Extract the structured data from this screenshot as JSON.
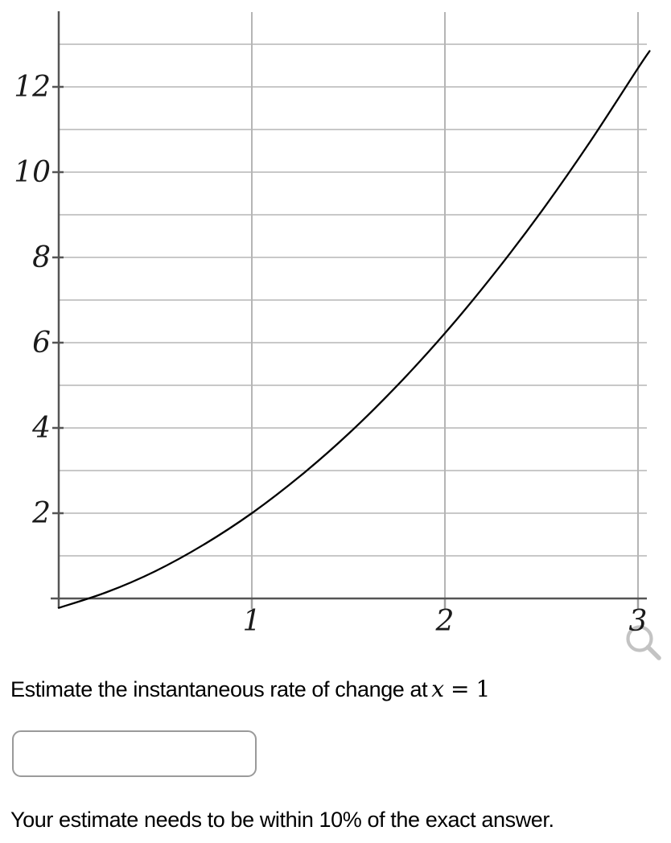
{
  "question": {
    "prefix": "Estimate the instantaneous rate of change at",
    "math": {
      "variable": "x",
      "relation": "=",
      "value": "1"
    }
  },
  "answer_input": {
    "value": "",
    "placeholder": ""
  },
  "note": "Your estimate needs to be within 10% of the exact answer.",
  "icons": {
    "zoom": "magnifier-icon"
  },
  "colors": {
    "axis": "#555555",
    "gridline": "#b5b5b5",
    "tick_below_axis": "#a0a0a0",
    "curve": "#000000",
    "label": "#1a1a1a",
    "zoom_icon": "#c3c3c3",
    "input_border": "#9a9a9a"
  },
  "chart_data": {
    "type": "line",
    "title": "",
    "xlabel": "",
    "ylabel": "",
    "xlim": [
      0,
      3.1
    ],
    "ylim": [
      -0.5,
      13.8
    ],
    "grid": true,
    "legend": false,
    "x_tick_values": [
      1,
      2,
      3
    ],
    "x_tick_labels": [
      "1",
      "2",
      "3"
    ],
    "y_tick_values": [
      2,
      4,
      6,
      8,
      10,
      12
    ],
    "y_tick_labels": [
      "2",
      "4",
      "6",
      "8",
      "10",
      "12"
    ],
    "x_gridline_values": [
      1,
      2,
      3
    ],
    "y_gridline_values": [
      1,
      2,
      3,
      4,
      5,
      6,
      7,
      8,
      9,
      10,
      11,
      12,
      13
    ],
    "series": [
      {
        "name": "curve",
        "points": [
          [
            0,
            -0.22
          ],
          [
            0.25,
            0.15
          ],
          [
            0.5,
            0.64
          ],
          [
            0.75,
            1.26
          ],
          [
            1,
            2.0
          ],
          [
            1.25,
            2.87
          ],
          [
            1.5,
            3.86
          ],
          [
            1.75,
            4.98
          ],
          [
            2,
            6.22
          ],
          [
            2.25,
            7.59
          ],
          [
            2.5,
            9.08
          ],
          [
            2.75,
            10.7
          ],
          [
            3,
            12.44
          ],
          [
            3.06,
            12.84
          ]
        ]
      }
    ]
  }
}
